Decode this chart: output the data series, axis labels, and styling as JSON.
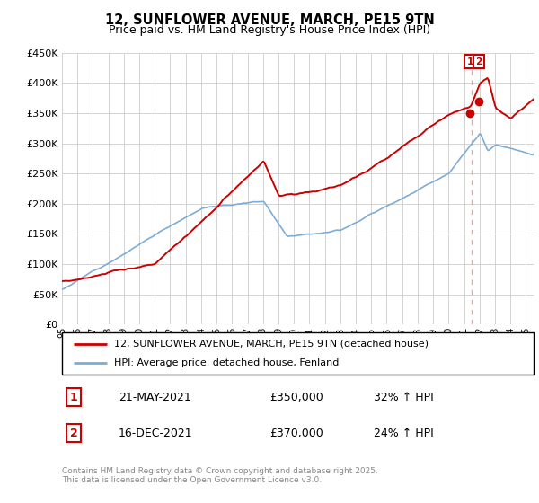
{
  "title": "12, SUNFLOWER AVENUE, MARCH, PE15 9TN",
  "subtitle": "Price paid vs. HM Land Registry's House Price Index (HPI)",
  "legend_line1": "12, SUNFLOWER AVENUE, MARCH, PE15 9TN (detached house)",
  "legend_line2": "HPI: Average price, detached house, Fenland",
  "annotation1_label": "1",
  "annotation1_date": "21-MAY-2021",
  "annotation1_price": "£350,000",
  "annotation1_hpi": "32% ↑ HPI",
  "annotation2_label": "2",
  "annotation2_date": "16-DEC-2021",
  "annotation2_price": "£370,000",
  "annotation2_hpi": "24% ↑ HPI",
  "footer": "Contains HM Land Registry data © Crown copyright and database right 2025.\nThis data is licensed under the Open Government Licence v3.0.",
  "red_color": "#cc0000",
  "blue_color": "#7dadd4",
  "dashed_line_color": "#f0a0a0",
  "marker_color": "#cc0000",
  "grid_color": "#cccccc",
  "bg_color": "#ffffff",
  "annotation_box_color": "#cc0000",
  "ylim_min": 0,
  "ylim_max": 450000,
  "t1_year": 2021.38,
  "t1_val": 350000,
  "t2_year": 2021.96,
  "t2_val": 370000,
  "vline_x": 2021.5
}
